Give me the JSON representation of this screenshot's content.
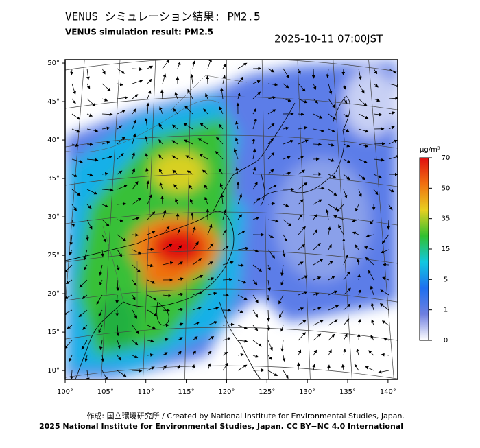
{
  "header": {
    "title_ja": "VENUS シミュレーション結果: PM2.5",
    "title_en": "VENUS simulation result: PM2.5",
    "timestamp": "2025-10-11 07:00JST"
  },
  "map": {
    "xlim": [
      100,
      141.2
    ],
    "ylim": [
      8.85,
      50.45
    ],
    "xticks": [
      {
        "value": 100,
        "label": "100°"
      },
      {
        "value": 105,
        "label": "105°"
      },
      {
        "value": 110,
        "label": "110°"
      },
      {
        "value": 115,
        "label": "115°"
      },
      {
        "value": 120,
        "label": "120°"
      },
      {
        "value": 125,
        "label": "125°"
      },
      {
        "value": 130,
        "label": "130°"
      },
      {
        "value": 135,
        "label": "135°"
      },
      {
        "value": 140,
        "label": "140°"
      }
    ],
    "yticks": [
      {
        "value": 10,
        "label": "10°"
      },
      {
        "value": 15,
        "label": "15°"
      },
      {
        "value": 20,
        "label": "20°"
      },
      {
        "value": 25,
        "label": "25°"
      },
      {
        "value": 30,
        "label": "30°"
      },
      {
        "value": 35,
        "label": "35°"
      },
      {
        "value": 40,
        "label": "40°"
      },
      {
        "value": 45,
        "label": "45°"
      },
      {
        "value": 50,
        "label": "50°"
      }
    ]
  },
  "colorbar": {
    "unit": "μg/m³",
    "ticks": [
      0,
      1,
      5,
      15,
      35,
      50,
      70
    ],
    "colors": [
      "#ffffff",
      "#6f7fe0",
      "#1e6ff0",
      "#10c8e0",
      "#30c030",
      "#e8d020",
      "#f07010",
      "#e01010"
    ]
  },
  "footer": {
    "credit": "作成: 国立環境研究所 / Created by National Institute for Environmental Studies, Japan.",
    "license": "2025 National Institute for Environmental Studies, Japan. CC BY−NC 4.0 International"
  }
}
